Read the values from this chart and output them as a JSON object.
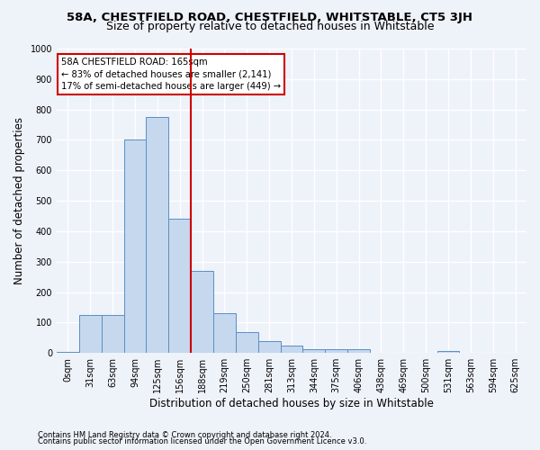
{
  "title": "58A, CHESTFIELD ROAD, CHESTFIELD, WHITSTABLE, CT5 3JH",
  "subtitle": "Size of property relative to detached houses in Whitstable",
  "xlabel": "Distribution of detached houses by size in Whitstable",
  "ylabel": "Number of detached properties",
  "bar_color": "#c5d8ee",
  "bar_edge_color": "#5b8ec4",
  "categories": [
    "0sqm",
    "31sqm",
    "63sqm",
    "94sqm",
    "125sqm",
    "156sqm",
    "188sqm",
    "219sqm",
    "250sqm",
    "281sqm",
    "313sqm",
    "344sqm",
    "375sqm",
    "406sqm",
    "438sqm",
    "469sqm",
    "500sqm",
    "531sqm",
    "563sqm",
    "594sqm",
    "625sqm"
  ],
  "values": [
    5,
    125,
    125,
    700,
    775,
    440,
    270,
    130,
    70,
    40,
    25,
    12,
    12,
    12,
    0,
    0,
    0,
    8,
    0,
    0,
    0
  ],
  "vline_x": 5.5,
  "annotation_line1": "58A CHESTFIELD ROAD: 165sqm",
  "annotation_line2": "← 83% of detached houses are smaller (2,141)",
  "annotation_line3": "17% of semi-detached houses are larger (449) →",
  "ylim": [
    0,
    1000
  ],
  "yticks": [
    0,
    100,
    200,
    300,
    400,
    500,
    600,
    700,
    800,
    900,
    1000
  ],
  "vline_color": "#cc0000",
  "footer1": "Contains HM Land Registry data © Crown copyright and database right 2024.",
  "footer2": "Contains public sector information licensed under the Open Government Licence v3.0.",
  "bg_color": "#eef2f9",
  "grid_color": "#ffffff",
  "title_fontsize": 9.5,
  "subtitle_fontsize": 9,
  "tick_fontsize": 7,
  "axis_label_fontsize": 8.5,
  "footer_fontsize": 6
}
